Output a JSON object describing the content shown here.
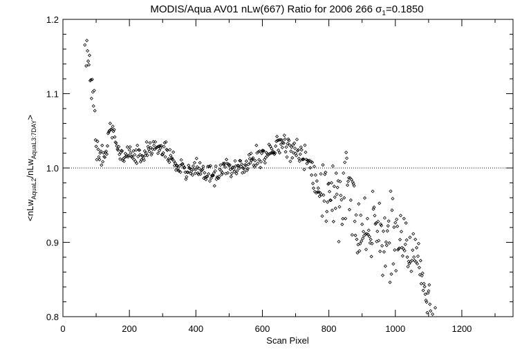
{
  "chart_data": {
    "type": "scatter",
    "title": "MODIS/Aqua AV01 nLw(667) Ratio for 2006 266 σ",
    "title_sub": "1",
    "title_value": "=0.1850",
    "xlabel": "Scan Pixel",
    "ylabel": {
      "prefix": "<nLw",
      "sub1": "AquaL2",
      "mid": "/nLw",
      "sub2": "AquaL3:7DAY",
      "suffix": ">"
    },
    "xlim": [
      0,
      1354
    ],
    "ylim": [
      0.8,
      1.2
    ],
    "x_ticks": [
      0,
      200,
      400,
      600,
      800,
      1000,
      1200
    ],
    "x_tick_labels": [
      "0",
      "200",
      "400",
      "600",
      "800",
      "1000",
      "1200"
    ],
    "y_ticks": [
      0.8,
      0.9,
      1.0,
      1.1,
      1.2
    ],
    "y_tick_labels": [
      "0.8",
      "0.9",
      "1.0",
      "1.1",
      "1.2"
    ],
    "reference_line": 1.0,
    "marker": "diamond",
    "color": "#000000",
    "trend": [
      [
        65,
        1.19
      ],
      [
        70,
        1.16
      ],
      [
        80,
        1.13
      ],
      [
        90,
        1.09
      ],
      [
        96,
        1.06
      ],
      [
        100,
        1.03
      ],
      [
        110,
        1.02
      ],
      [
        120,
        1.015
      ],
      [
        130,
        1.02
      ],
      [
        140,
        1.055
      ],
      [
        150,
        1.055
      ],
      [
        160,
        1.035
      ],
      [
        170,
        1.015
      ],
      [
        200,
        1.02
      ],
      [
        240,
        1.015
      ],
      [
        270,
        1.028
      ],
      [
        300,
        1.025
      ],
      [
        330,
        1.015
      ],
      [
        350,
        1.0
      ],
      [
        400,
        0.997
      ],
      [
        440,
        0.99
      ],
      [
        470,
        0.993
      ],
      [
        520,
        1.0
      ],
      [
        560,
        1.008
      ],
      [
        600,
        1.018
      ],
      [
        640,
        1.025
      ],
      [
        660,
        1.04
      ],
      [
        680,
        1.03
      ],
      [
        700,
        1.02
      ],
      [
        740,
        1.01
      ],
      [
        760,
        0.975
      ],
      [
        800,
        0.97
      ],
      [
        840,
        0.965
      ],
      [
        860,
        0.975
      ],
      [
        880,
        0.94
      ],
      [
        900,
        0.92
      ],
      [
        950,
        0.915
      ],
      [
        1000,
        0.9
      ],
      [
        1040,
        0.885
      ],
      [
        1070,
        0.875
      ],
      [
        1090,
        0.83
      ],
      [
        1110,
        0.805
      ],
      [
        1130,
        0.79
      ]
    ],
    "spread": [
      [
        65,
        0.02
      ],
      [
        100,
        0.015
      ],
      [
        130,
        0.006
      ],
      [
        300,
        0.006
      ],
      [
        700,
        0.008
      ],
      [
        740,
        0.01
      ],
      [
        760,
        0.02
      ],
      [
        880,
        0.03
      ],
      [
        1040,
        0.02
      ],
      [
        1090,
        0.012
      ],
      [
        1130,
        0.01
      ]
    ],
    "x_range": [
      66,
      1130
    ],
    "x_step": 2
  }
}
